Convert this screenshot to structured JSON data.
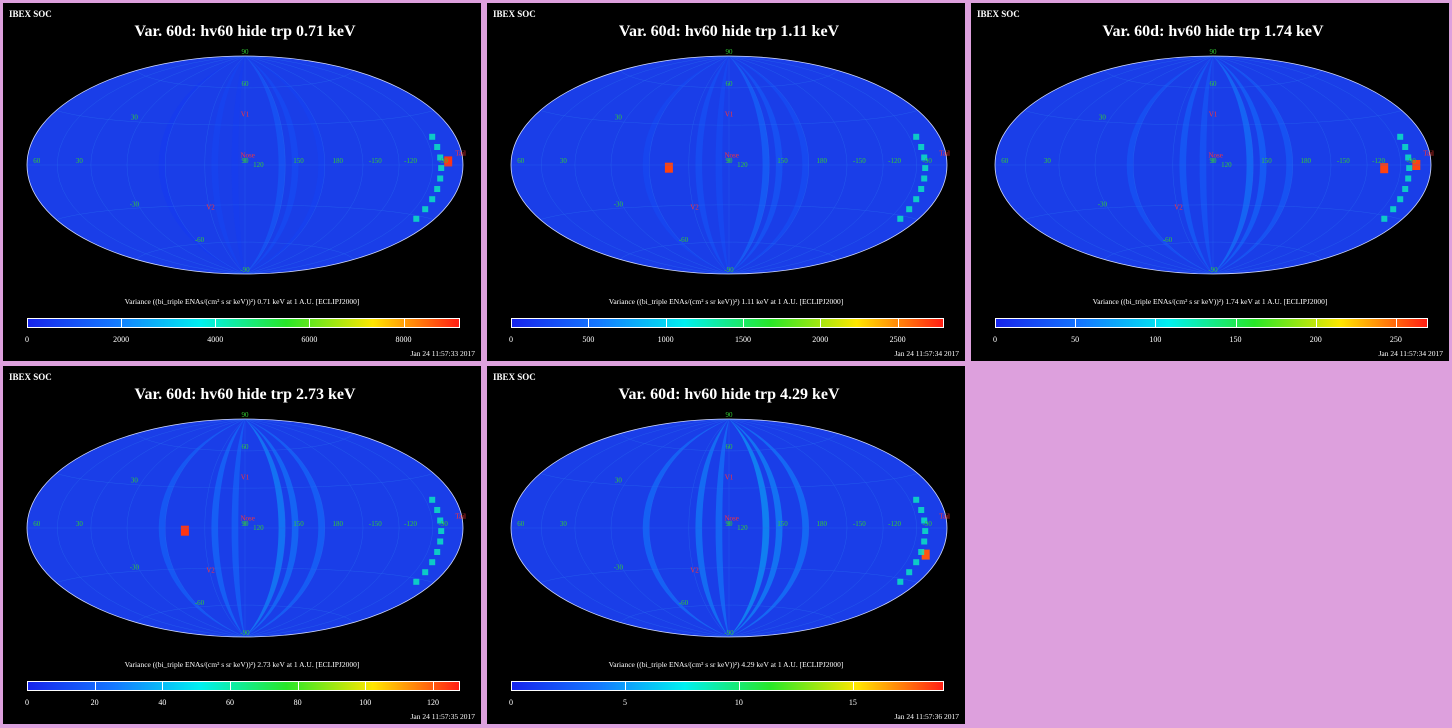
{
  "header": "IBEX SOC",
  "colors": {
    "background": "#dda0dd",
    "panel": "#000000",
    "map_base": "#1a3ee8",
    "grid": "#2a6cf0",
    "tick_green": "#33cc33",
    "marker": "#ff3333"
  },
  "map_labels": {
    "lat_90": "90",
    "lat_60": "60",
    "lat_30": "30",
    "lat_0": "0",
    "lat_m30": "-30",
    "lat_m60": "-60",
    "lat_m90": "-90",
    "lon_120": "120",
    "lon_150": "150",
    "lon_180": "180",
    "lon_m150": "-150",
    "lon_m120": "-120",
    "lon_m90": "-90",
    "lon_m60": "-60",
    "lon_m30": "-30",
    "lon_30": "30",
    "lon_60": "60",
    "lon_90": "90",
    "v1": "V1",
    "v2": "V2",
    "nose": "Nose",
    "tail": "Tail"
  },
  "panels": [
    {
      "title": "Var. 60d: hv60 hide trp 0.71 keV",
      "colorbar_label": "Variance ((bi_triple ENAs/(cm² s sr keV))²) 0.71 keV at 1 A.U. [ECLIPJ2000]",
      "ticks": [
        "0",
        "2000",
        "4000",
        "6000",
        "8000"
      ],
      "max": 9200,
      "date": "Jan 24 11:57:33 2017",
      "hot": [
        {
          "lon": -165,
          "lat": 2,
          "value": 9000
        }
      ]
    },
    {
      "title": "Var. 60d: hv60 hide trp 1.11 keV",
      "colorbar_label": "Variance ((bi_triple ENAs/(cm² s sr keV))²) 1.11 keV at 1 A.U. [ECLIPJ2000]",
      "ticks": [
        "0",
        "500",
        "1000",
        "1500",
        "2000",
        "2500"
      ],
      "max": 2800,
      "date": "Jan 24 11:57:34 2017",
      "hot": [
        {
          "lon": 45,
          "lat": -2,
          "value": 2700
        }
      ]
    },
    {
      "title": "Var. 60d: hv60 hide trp 1.74 keV",
      "colorbar_label": "Variance ((bi_triple ENAs/(cm² s sr keV))²) 1.74 keV at 1 A.U. [ECLIPJ2000]",
      "ticks": [
        "0",
        "50",
        "100",
        "150",
        "200",
        "250"
      ],
      "max": 270,
      "date": "Jan 24 11:57:34 2017",
      "hot": [
        {
          "lon": -135,
          "lat": -2,
          "value": 260
        },
        {
          "lon": -165,
          "lat": 0,
          "value": 260
        }
      ]
    },
    {
      "title": "Var. 60d: hv60 hide trp 2.73 keV",
      "colorbar_label": "Variance ((bi_triple ENAs/(cm² s sr keV))²) 2.73 keV at 1 A.U. [ECLIPJ2000]",
      "ticks": [
        "0",
        "20",
        "40",
        "60",
        "80",
        "100",
        "120"
      ],
      "max": 128,
      "date": "Jan 24 11:57:35 2017",
      "hot": [
        {
          "lon": 45,
          "lat": -2,
          "value": 125
        }
      ]
    },
    {
      "title": "Var. 60d: hv60 hide trp 4.29 keV",
      "colorbar_label": "Variance ((bi_triple ENAs/(cm² s sr keV))²) 4.29 keV at 1 A.U. [ECLIPJ2000]",
      "ticks": [
        "0",
        "5",
        "10",
        "15"
      ],
      "max": 19,
      "date": "Jan 24 11:57:36 2017",
      "hot": [
        {
          "lon": -165,
          "lat": -15,
          "value": 18
        }
      ]
    }
  ]
}
